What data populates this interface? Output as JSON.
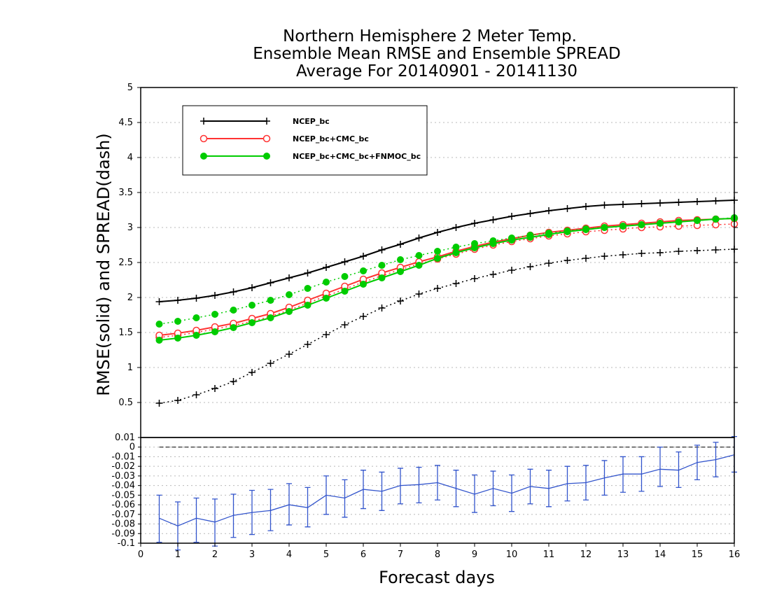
{
  "chart_data": [
    {
      "type": "line",
      "title": [
        "Northern Hemisphere 2 Meter Temp.",
        "Ensemble Mean RMSE and Ensemble SPREAD",
        "Average For 20140901 - 20141130"
      ],
      "xlabel": "Forecast days",
      "ylabel": "RMSE(solid)  and  SPREAD(dash)",
      "xlim": [
        0,
        16
      ],
      "ylim": [
        0,
        5
      ],
      "x_ticks": [
        "0",
        "1",
        "2",
        "3",
        "4",
        "5",
        "6",
        "7",
        "8",
        "9",
        "10",
        "11",
        "12",
        "13",
        "14",
        "15",
        "16"
      ],
      "y_ticks": [
        "0.5",
        "1",
        "1.5",
        "2",
        "2.5",
        "3",
        "3.5",
        "4",
        "4.5",
        "5"
      ],
      "grid": true,
      "legend_position": "top-left",
      "x": [
        0.5,
        1,
        1.5,
        2,
        2.5,
        3,
        3.5,
        4,
        4.5,
        5,
        5.5,
        6,
        6.5,
        7,
        7.5,
        8,
        8.5,
        9,
        9.5,
        10,
        10.5,
        11,
        11.5,
        12,
        12.5,
        13,
        13.5,
        14,
        14.5,
        15,
        15.5,
        16
      ],
      "series": [
        {
          "name": "NCEP_bc",
          "color": "#000000",
          "marker": "plus",
          "rmse": [
            1.94,
            1.96,
            1.99,
            2.03,
            2.08,
            2.14,
            2.21,
            2.28,
            2.35,
            2.43,
            2.51,
            2.59,
            2.68,
            2.76,
            2.85,
            2.93,
            3.0,
            3.06,
            3.11,
            3.16,
            3.2,
            3.24,
            3.27,
            3.3,
            3.32,
            3.33,
            3.34,
            3.35,
            3.36,
            3.37,
            3.38,
            3.39
          ],
          "spread": [
            0.49,
            0.53,
            0.61,
            0.7,
            0.8,
            0.93,
            1.06,
            1.19,
            1.33,
            1.47,
            1.61,
            1.73,
            1.85,
            1.95,
            2.05,
            2.13,
            2.2,
            2.27,
            2.33,
            2.39,
            2.44,
            2.49,
            2.53,
            2.56,
            2.59,
            2.61,
            2.63,
            2.64,
            2.66,
            2.67,
            2.68,
            2.69
          ]
        },
        {
          "name": "NCEP_bc+CMC_bc",
          "color": "#ff3333",
          "marker": "open-circle",
          "rmse": [
            1.46,
            1.49,
            1.53,
            1.58,
            1.63,
            1.7,
            1.77,
            1.86,
            1.96,
            2.06,
            2.16,
            2.26,
            2.35,
            2.43,
            2.51,
            2.58,
            2.66,
            2.73,
            2.79,
            2.84,
            2.89,
            2.93,
            2.96,
            2.99,
            3.02,
            3.04,
            3.06,
            3.08,
            3.1,
            3.11,
            3.12,
            3.13
          ],
          "spread": [
            1.43,
            1.46,
            1.5,
            1.55,
            1.6,
            1.66,
            1.73,
            1.82,
            1.92,
            2.02,
            2.12,
            2.22,
            2.31,
            2.4,
            2.48,
            2.55,
            2.62,
            2.69,
            2.75,
            2.8,
            2.84,
            2.88,
            2.91,
            2.94,
            2.96,
            2.98,
            3.0,
            3.01,
            3.02,
            3.03,
            3.04,
            3.05
          ]
        },
        {
          "name": "NCEP_bc+CMC_bc+FNMOC_bc",
          "color": "#00cc00",
          "marker": "filled-circle",
          "rmse": [
            1.39,
            1.42,
            1.46,
            1.51,
            1.57,
            1.64,
            1.71,
            1.8,
            1.89,
            1.99,
            2.09,
            2.19,
            2.28,
            2.37,
            2.46,
            2.56,
            2.64,
            2.71,
            2.77,
            2.82,
            2.86,
            2.9,
            2.94,
            2.97,
            3.0,
            3.02,
            3.04,
            3.06,
            3.08,
            3.1,
            3.12,
            3.13
          ],
          "spread": [
            1.62,
            1.66,
            1.71,
            1.76,
            1.82,
            1.89,
            1.96,
            2.04,
            2.13,
            2.22,
            2.3,
            2.38,
            2.46,
            2.54,
            2.6,
            2.66,
            2.72,
            2.77,
            2.81,
            2.85,
            2.89,
            2.92,
            2.95,
            2.98,
            3.0,
            3.02,
            3.04,
            3.06,
            3.08,
            3.1,
            3.12,
            3.14
          ]
        }
      ]
    },
    {
      "type": "line",
      "xlim": [
        0,
        16
      ],
      "ylim": [
        -0.1,
        0.01
      ],
      "y_ticks": [
        "0.01",
        "0",
        "-0.01",
        "-0.02",
        "-0.03",
        "-0.04",
        "-0.05",
        "-0.06",
        "-0.07",
        "-0.08",
        "-0.09",
        "-0.1"
      ],
      "grid": true,
      "zero_line": 0,
      "series": [
        {
          "color": "#3355cc",
          "marker": "errorbar",
          "x": [
            0.5,
            1,
            1.5,
            2,
            2.5,
            3,
            3.5,
            4,
            4.5,
            5,
            5.5,
            6,
            6.5,
            7,
            7.5,
            8,
            8.5,
            9,
            9.5,
            10,
            10.5,
            11,
            11.5,
            12,
            12.5,
            13,
            13.5,
            14,
            14.5,
            15,
            15.5,
            16
          ],
          "values": [
            -0.074,
            -0.082,
            -0.074,
            -0.078,
            -0.071,
            -0.068,
            -0.066,
            -0.06,
            -0.063,
            -0.05,
            -0.053,
            -0.044,
            -0.046,
            -0.04,
            -0.039,
            -0.037,
            -0.043,
            -0.049,
            -0.043,
            -0.048,
            -0.041,
            -0.043,
            -0.038,
            -0.037,
            -0.032,
            -0.028,
            -0.028,
            -0.023,
            -0.024,
            -0.016,
            -0.013,
            -0.008
          ],
          "lower": [
            -0.099,
            -0.107,
            -0.099,
            -0.103,
            -0.094,
            -0.091,
            -0.087,
            -0.081,
            -0.083,
            -0.07,
            -0.073,
            -0.064,
            -0.066,
            -0.059,
            -0.058,
            -0.055,
            -0.062,
            -0.068,
            -0.061,
            -0.067,
            -0.059,
            -0.062,
            -0.056,
            -0.055,
            -0.05,
            -0.047,
            -0.046,
            -0.041,
            -0.042,
            -0.034,
            -0.031,
            -0.026
          ],
          "upper": [
            -0.05,
            -0.057,
            -0.053,
            -0.054,
            -0.049,
            -0.045,
            -0.044,
            -0.038,
            -0.042,
            -0.03,
            -0.034,
            -0.024,
            -0.026,
            -0.022,
            -0.021,
            -0.019,
            -0.024,
            -0.029,
            -0.025,
            -0.029,
            -0.023,
            -0.024,
            -0.02,
            -0.019,
            -0.014,
            -0.01,
            -0.01,
            0.0,
            -0.005,
            0.002,
            0.005,
            0.011
          ]
        }
      ]
    }
  ]
}
